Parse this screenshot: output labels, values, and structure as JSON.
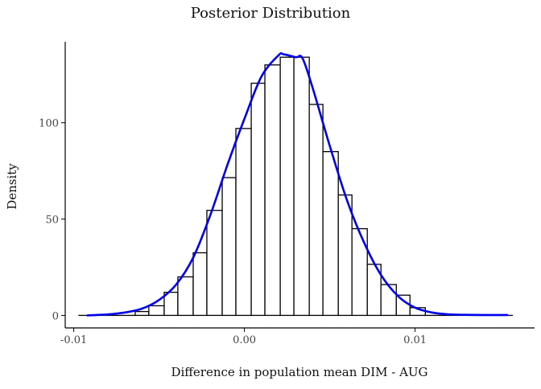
{
  "chart_data": {
    "type": "bar",
    "subtype": "histogram with density curve",
    "title": "Posterior Distribution",
    "xlabel": "Difference in population mean DIM - AUG",
    "ylabel": "Density",
    "xlim": [
      -0.0105,
      0.017
    ],
    "ylim": [
      -6.5,
      142
    ],
    "x_ticks": [
      -0.01,
      0.0,
      0.01
    ],
    "x_tick_labels": [
      "-0.01",
      "0.00",
      "0.01"
    ],
    "y_ticks": [
      0,
      50,
      100
    ],
    "y_tick_labels": [
      "0",
      "50",
      "100"
    ],
    "grid": false,
    "legend": "none",
    "bins": [
      {
        "start": -0.0097,
        "end": -0.0064,
        "value": 0
      },
      {
        "start": -0.0064,
        "end": -0.0056,
        "value": 2
      },
      {
        "start": -0.0056,
        "end": -0.0047,
        "value": 5
      },
      {
        "start": -0.0047,
        "end": -0.0039,
        "value": 12
      },
      {
        "start": -0.0039,
        "end": -0.003,
        "value": 20
      },
      {
        "start": -0.003,
        "end": -0.0022,
        "value": 32.5
      },
      {
        "start": -0.0022,
        "end": -0.0013,
        "value": 54.5
      },
      {
        "start": -0.0013,
        "end": -0.0005,
        "value": 71.5
      },
      {
        "start": -0.0005,
        "end": 0.0004,
        "value": 97
      },
      {
        "start": 0.0004,
        "end": 0.0012,
        "value": 120.5
      },
      {
        "start": 0.0012,
        "end": 0.0021,
        "value": 130
      },
      {
        "start": 0.0021,
        "end": 0.0029,
        "value": 134
      },
      {
        "start": 0.0029,
        "end": 0.0038,
        "value": 134
      },
      {
        "start": 0.0038,
        "end": 0.0046,
        "value": 109.5
      },
      {
        "start": 0.0046,
        "end": 0.0055,
        "value": 85
      },
      {
        "start": 0.0055,
        "end": 0.0063,
        "value": 62.5
      },
      {
        "start": 0.0063,
        "end": 0.0072,
        "value": 45
      },
      {
        "start": 0.0072,
        "end": 0.008,
        "value": 26.5
      },
      {
        "start": 0.008,
        "end": 0.0089,
        "value": 16
      },
      {
        "start": 0.0089,
        "end": 0.0097,
        "value": 10.5
      },
      {
        "start": 0.0097,
        "end": 0.0106,
        "value": 4
      },
      {
        "start": 0.0106,
        "end": 0.0157,
        "value": 0
      }
    ],
    "density": {
      "name": "density",
      "color": "#0000ee",
      "x": [
        -0.0092,
        -0.008,
        -0.007,
        -0.006,
        -0.005,
        -0.004,
        -0.003,
        -0.002,
        -0.001,
        0.0,
        0.001,
        0.002,
        0.0023,
        0.003,
        0.0034,
        0.004,
        0.005,
        0.006,
        0.007,
        0.008,
        0.009,
        0.01,
        0.011,
        0.012,
        0.013,
        0.014,
        0.0154
      ],
      "y": [
        0,
        0.5,
        1.5,
        3.5,
        8,
        16,
        30,
        52,
        78,
        102,
        124,
        135,
        135.5,
        134,
        133.5,
        118,
        88,
        60,
        38,
        21,
        10,
        4,
        1.5,
        0.5,
        0.3,
        0.2,
        0.2
      ]
    },
    "colors": {
      "bar_fill": "#ffffff",
      "bar_stroke": "#000000",
      "axis": "#000000",
      "text": "#222222",
      "tick_text": "#444444"
    }
  }
}
